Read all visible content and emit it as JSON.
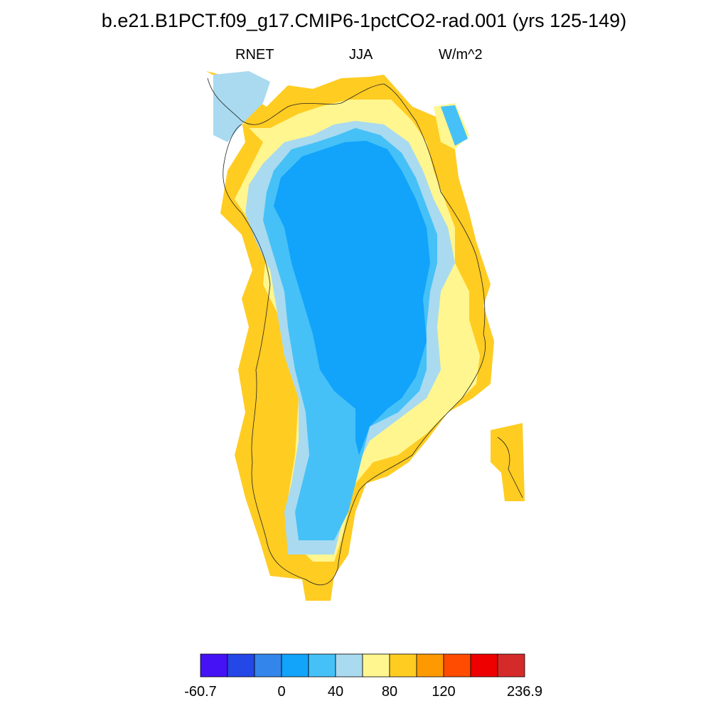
{
  "title": "b.e21.B1PCT.f09_g17.CMIP6-1pctCO2-rad.001 (yrs 125-149)",
  "subtitle": {
    "left": "RNET",
    "center": "JJA",
    "right": "W/m^2"
  },
  "colorbar": {
    "colors": [
      "#4412f5",
      "#2447e8",
      "#3385eb",
      "#12a3fb",
      "#45c1f7",
      "#a9daf0",
      "#fff68f",
      "#ffcc22",
      "#ff9900",
      "#ff4c00",
      "#ee0000",
      "#d42a2a"
    ],
    "labels": [
      "-60.7",
      "0",
      "40",
      "80",
      "120",
      "236.9"
    ]
  },
  "map_legend": {
    "fill_by_class": {
      "interior": "#12a3fb",
      "inner_ring": "#45c1f7",
      "mid_ring": "#a9daf0",
      "coast": "#fff68f",
      "warm_coast": "#ffcc22",
      "hot_coast": "#ff9900"
    }
  }
}
